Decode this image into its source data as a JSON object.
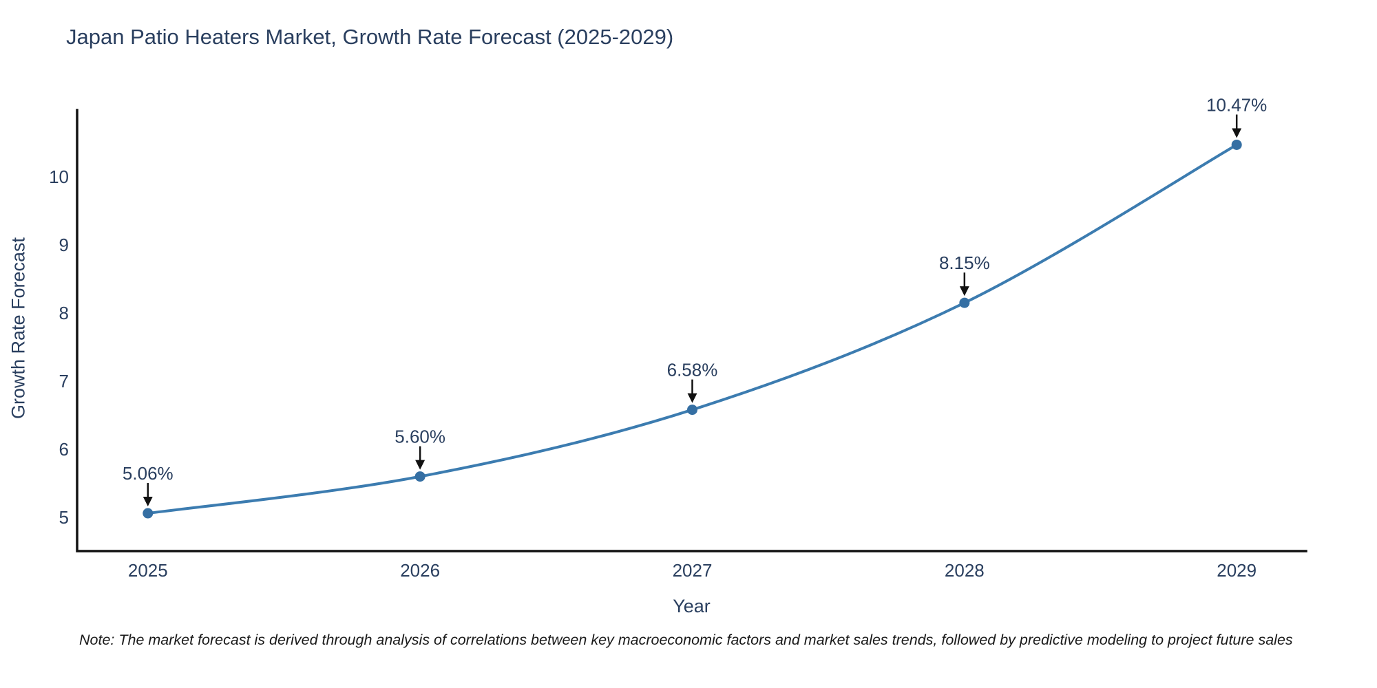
{
  "page": {
    "background_color": "#ffffff"
  },
  "chart_data": {
    "type": "line",
    "title": "Japan Patio Heaters Market, Growth Rate Forecast (2025-2029)",
    "xlabel": "Year",
    "ylabel": "Growth Rate Forecast",
    "x": [
      2025,
      2026,
      2027,
      2028,
      2029
    ],
    "y": [
      5.06,
      5.6,
      6.58,
      8.15,
      10.47
    ],
    "point_labels": [
      "5.06%",
      "5.60%",
      "6.58%",
      "8.15%",
      "10.47%"
    ],
    "x_tick_labels": [
      "2025",
      "2026",
      "2027",
      "2028",
      "2029"
    ],
    "y_ticks": [
      5,
      6,
      7,
      8,
      9,
      10
    ],
    "xlim": [
      2024.74,
      2029.255
    ],
    "ylim": [
      4.505,
      10.98
    ],
    "grid": false,
    "legend": "none",
    "line_shape": "spline",
    "colors": {
      "line": "#3c7cb0",
      "marker": "#356f a3",
      "marker_fill": "#356fa3",
      "axis": "#111111",
      "tick_text": "#2a3f5f",
      "annotation_text": "#2a3f5f",
      "arrow": "#111111",
      "title_text": "#2a3f5f"
    }
  },
  "footnote": {
    "text": "Note: The market forecast is derived through analysis of correlations between key macroeconomic factors and market sales trends, followed by predictive modeling to project future sales"
  }
}
